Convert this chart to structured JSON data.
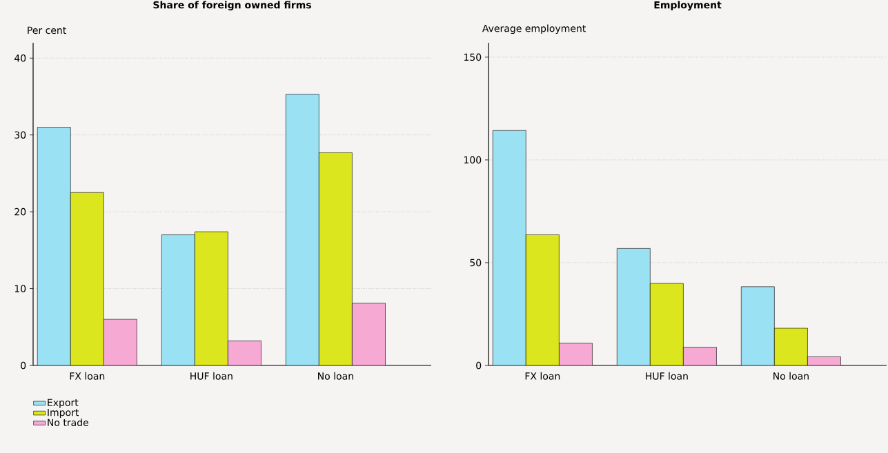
{
  "chart_data": [
    {
      "type": "bar",
      "title": "Share of foreign owned firms",
      "ylabel": "Per cent",
      "categories": [
        "FX loan",
        "HUF loan",
        "No loan"
      ],
      "series": [
        {
          "name": "Export",
          "color": "#9ae1f3",
          "values": [
            31.0,
            17.0,
            35.3
          ]
        },
        {
          "name": "Import",
          "color": "#dce61e",
          "values": [
            22.5,
            17.4,
            27.7
          ]
        },
        {
          "name": "No trade",
          "color": "#f6a9d3",
          "values": [
            6.0,
            3.2,
            8.1
          ]
        }
      ],
      "ylim": [
        0,
        42
      ],
      "yticks": [
        0,
        10,
        20,
        30,
        40
      ],
      "grid": "y",
      "legend": "bottom left"
    },
    {
      "type": "bar",
      "title": "Employment",
      "ylabel": "Average employment",
      "categories": [
        "FX loan",
        "HUF loan",
        "No loan"
      ],
      "series": [
        {
          "color": "#9ae1f3",
          "values": [
            114.3,
            56.9,
            38.3
          ]
        },
        {
          "color": "#dce61e",
          "values": [
            63.6,
            39.9,
            18.1
          ]
        },
        {
          "color": "#f6a9d3",
          "values": [
            10.8,
            8.9,
            4.2
          ]
        }
      ],
      "ylim": [
        0,
        157
      ],
      "yticks": [
        0,
        50,
        100,
        150
      ],
      "grid": "y"
    }
  ]
}
